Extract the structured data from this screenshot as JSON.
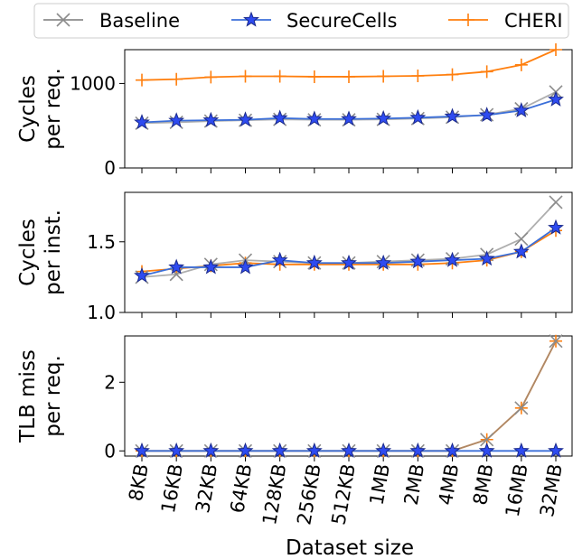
{
  "legend": {
    "placement": "top",
    "entries": [
      {
        "label": "Baseline",
        "color": "#8c8c8c",
        "marker": "x"
      },
      {
        "label": "SecureCells",
        "color": "#3b6fd9",
        "marker": "star"
      },
      {
        "label": "CHERI",
        "color": "#ff7f0e",
        "marker": "plus"
      }
    ]
  },
  "chart_data": {
    "type": "line",
    "categories": [
      "8KB",
      "16KB",
      "32KB",
      "64KB",
      "128KB",
      "256KB",
      "512KB",
      "1MB",
      "2MB",
      "4MB",
      "8MB",
      "16MB",
      "32MB"
    ],
    "xlabel": "Dataset size",
    "panels": [
      {
        "ylabel_lines": [
          "Cycles",
          "per req."
        ],
        "ylim": [
          0,
          1400
        ],
        "yticks": [
          0,
          1000
        ],
        "ytick_labels": [
          "0",
          "1000"
        ],
        "series": [
          {
            "name": "Baseline",
            "values": [
              530,
              540,
              555,
              565,
              575,
              570,
              570,
              575,
              585,
              600,
              630,
              700,
              900
            ]
          },
          {
            "name": "SecureCells",
            "values": [
              540,
              560,
              565,
              570,
              590,
              580,
              580,
              585,
              595,
              610,
              625,
              680,
              810
            ]
          },
          {
            "name": "CHERI",
            "values": [
              1040,
              1050,
              1075,
              1085,
              1085,
              1080,
              1080,
              1085,
              1090,
              1105,
              1140,
              1220,
              1400
            ]
          }
        ]
      },
      {
        "ylabel_lines": [
          "Cycles",
          "per inst."
        ],
        "ylim": [
          1.0,
          1.85
        ],
        "yticks": [
          1.0,
          1.5
        ],
        "ytick_labels": [
          "1.0",
          "1.5"
        ],
        "series": [
          {
            "name": "Baseline",
            "values": [
              1.25,
              1.27,
              1.34,
              1.37,
              1.36,
              1.35,
              1.35,
              1.36,
              1.37,
              1.38,
              1.41,
              1.52,
              1.78
            ]
          },
          {
            "name": "SecureCells",
            "values": [
              1.26,
              1.32,
              1.32,
              1.32,
              1.37,
              1.35,
              1.35,
              1.35,
              1.36,
              1.37,
              1.38,
              1.43,
              1.6
            ]
          },
          {
            "name": "CHERI",
            "values": [
              1.29,
              1.31,
              1.33,
              1.35,
              1.34,
              1.34,
              1.34,
              1.34,
              1.34,
              1.35,
              1.37,
              1.43,
              1.58
            ]
          }
        ]
      },
      {
        "ylabel_lines": [
          "TLB miss",
          "per req."
        ],
        "ylim": [
          -0.15,
          3.35
        ],
        "yticks": [
          0,
          2
        ],
        "ytick_labels": [
          "0",
          "2"
        ],
        "series": [
          {
            "name": "Baseline",
            "values": [
              0,
              0,
              0,
              0,
              0,
              0,
              0,
              0,
              0,
              0,
              0.33,
              1.25,
              3.2
            ]
          },
          {
            "name": "SecureCells",
            "values": [
              0,
              0,
              0,
              0,
              0,
              0,
              0,
              0,
              0,
              0,
              0,
              0,
              0
            ]
          },
          {
            "name": "CHERI",
            "values": [
              0,
              0,
              0,
              0,
              0,
              0,
              0,
              0,
              0,
              0,
              0.33,
              1.25,
              3.2
            ]
          }
        ]
      }
    ]
  }
}
